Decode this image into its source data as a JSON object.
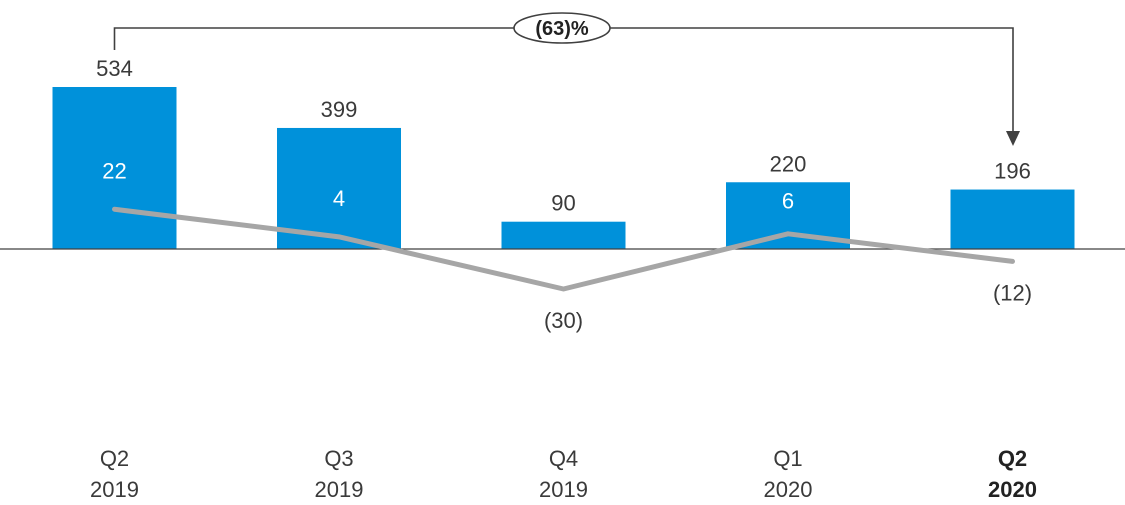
{
  "chart_data": {
    "type": "bar",
    "categories": [
      {
        "line1": "Q2",
        "line2": "2019",
        "bold": false
      },
      {
        "line1": "Q3",
        "line2": "2019",
        "bold": false
      },
      {
        "line1": "Q4",
        "line2": "2019",
        "bold": false
      },
      {
        "line1": "Q1",
        "line2": "2020",
        "bold": false
      },
      {
        "line1": "Q2",
        "line2": "2020",
        "bold": true
      }
    ],
    "series": [
      {
        "kind": "bar",
        "values": [
          534,
          399,
          90,
          220,
          196
        ],
        "labels": [
          "534",
          "399",
          "90",
          "220",
          "196"
        ]
      },
      {
        "kind": "line",
        "values": [
          22,
          4,
          -30,
          6,
          -12
        ],
        "labels": [
          "22",
          "4",
          "(30)",
          "6",
          "(12)"
        ]
      }
    ],
    "callout": {
      "text": "(63)%",
      "from_index": 0,
      "to_index": 4
    },
    "colors": {
      "bar": "#0091DA",
      "line": "#A6A6A6",
      "axis": "#404040",
      "callout": "#404040"
    }
  }
}
